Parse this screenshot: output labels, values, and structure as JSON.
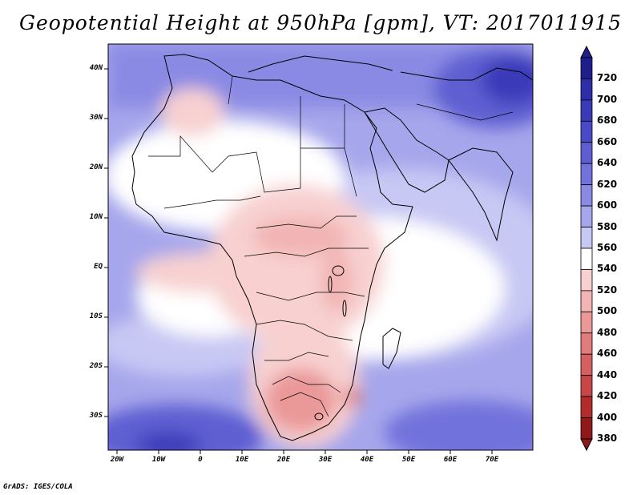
{
  "title": "Geopotential Height at 950hPa [gpm], VT: 2017011915",
  "lat_labels": [
    "40N",
    "30N",
    "20N",
    "10N",
    "EQ",
    "10S",
    "20S",
    "30S"
  ],
  "lon_labels": [
    "20W",
    "10W",
    "0",
    "10E",
    "20E",
    "30E",
    "40E",
    "50E",
    "60E",
    "70E"
  ],
  "colorbar": {
    "levels": [
      "720",
      "700",
      "680",
      "660",
      "640",
      "620",
      "600",
      "580",
      "560",
      "540",
      "520",
      "500",
      "480",
      "460",
      "440",
      "420",
      "400",
      "380"
    ],
    "colors": [
      "#1e1e8c",
      "#2e2ea8",
      "#3a3ab9",
      "#4a4ac8",
      "#5e5ed2",
      "#7272dc",
      "#8a8ae4",
      "#a6a6ec",
      "#c8c8f4",
      "#ffffff",
      "#f8d0d0",
      "#f2b4b4",
      "#ea9898",
      "#e07c7c",
      "#d66060",
      "#c84646",
      "#b22c2c",
      "#901818"
    ]
  },
  "credit": "GrADS: IGES/COLA"
}
